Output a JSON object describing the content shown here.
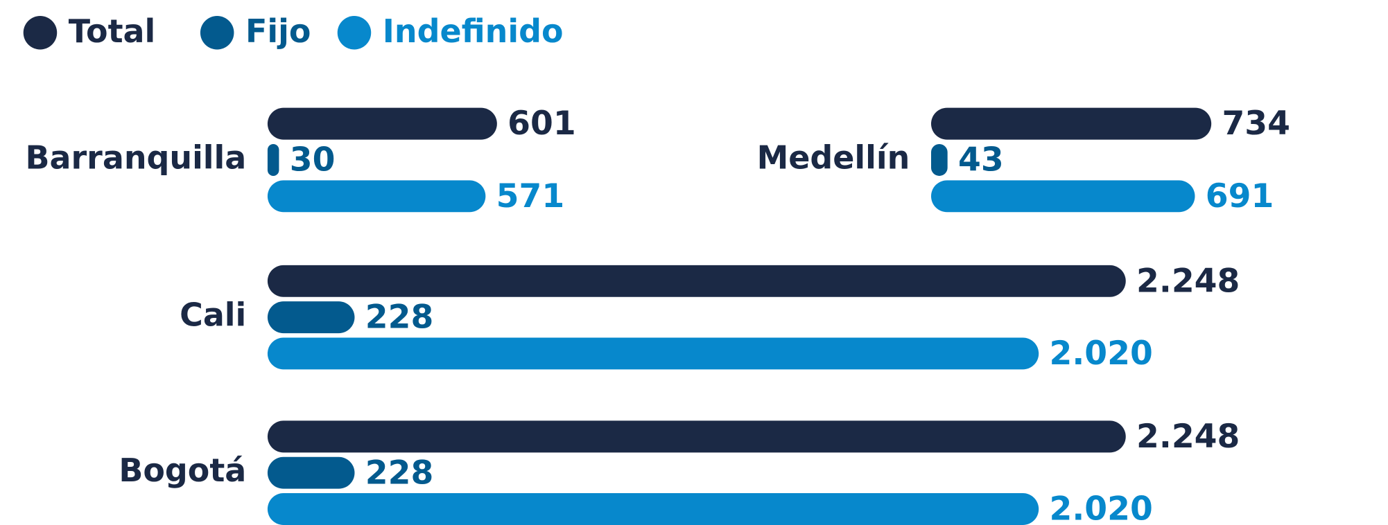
{
  "chart_data": {
    "type": "bar",
    "orientation": "horizontal",
    "categories": [
      "Barranquilla",
      "Medellín",
      "Cali",
      "Bogotá"
    ],
    "series": [
      {
        "name": "Total",
        "color": "#1b2945",
        "values": [
          601,
          734,
          2248,
          2248
        ],
        "value_labels": [
          "601",
          "734",
          "2.248",
          "2.248"
        ]
      },
      {
        "name": "Fijo",
        "color": "#035a8e",
        "values": [
          30,
          43,
          228,
          228
        ],
        "value_labels": [
          "30",
          "43",
          "228",
          "228"
        ]
      },
      {
        "name": "Indefinido",
        "color": "#0788cc",
        "values": [
          571,
          691,
          2020,
          2020
        ],
        "value_labels": [
          "571",
          "691",
          "2.020",
          "2.020"
        ]
      }
    ],
    "legend": "top-left"
  }
}
